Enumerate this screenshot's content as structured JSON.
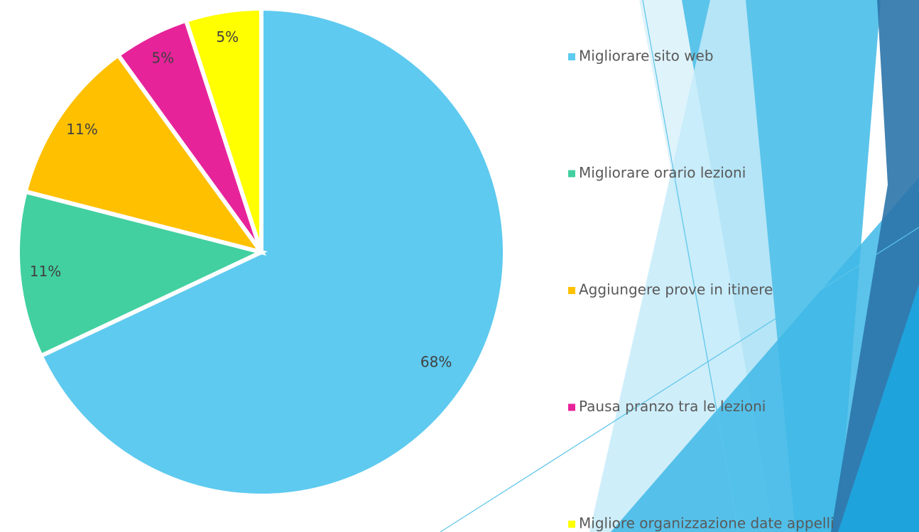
{
  "chart_data": {
    "type": "pie",
    "categories": [
      "Migliorare sito web",
      "Migliorare orario lezioni",
      "Aggiungere prove in itinere",
      "Pausa pranzo tra le lezioni",
      "Migliore organizzazione date appelli"
    ],
    "values": [
      68,
      11,
      11,
      5,
      5
    ],
    "value_labels": [
      "68%",
      "11%",
      "11%",
      "5%",
      "5%"
    ],
    "colors": [
      "#5ECAEF",
      "#42D0A0",
      "#FFC000",
      "#E7239A",
      "#FFFF00"
    ],
    "legend": "right"
  }
}
